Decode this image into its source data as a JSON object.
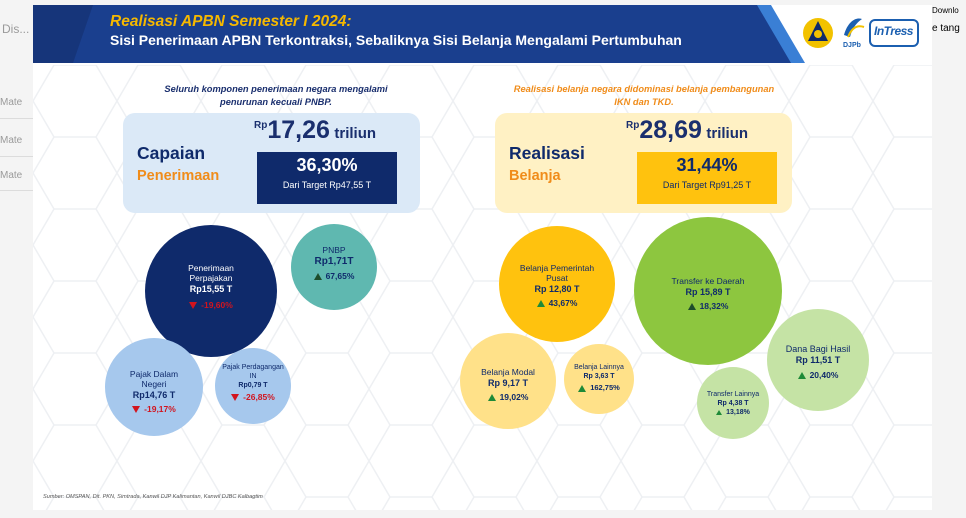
{
  "background_app": {
    "top_left_text": "Dis...",
    "rows": [
      "Mate",
      "Mate",
      "Mate"
    ],
    "right_top_text": "Downlo",
    "right_bottom_text": "e tang"
  },
  "header": {
    "title": "Realisasi APBN Semester I 2024:",
    "subtitle": "Sisi Penerimaan APBN Terkontraksi, Sebaliknya Sisi Belanja Mengalami Pertumbuhan",
    "logos": {
      "djpb_text": "DJPb",
      "intress_text": "InTress"
    }
  },
  "left": {
    "note": "Seluruh komponen penerimaan negara mengalami penurunan kecuali PNBP.",
    "card_label_1": "Capaian",
    "card_label_2": "Penerimaan",
    "amount_rp": "Rp",
    "amount_value": "17,26",
    "amount_unit": "triliun",
    "percent": "36,30%",
    "target": "Dari Target Rp47,55 T",
    "bubbles": [
      {
        "name": "Penerimaan Perpajakan",
        "value": "Rp15,55 T",
        "change": "-19,60%",
        "direction": "down"
      },
      {
        "name": "PNBP",
        "value": "Rp1,71T",
        "change": "67,65%",
        "direction": "up"
      },
      {
        "name": "Pajak Dalam Negeri",
        "value": "Rp14,76 T",
        "change": "-19,17%",
        "direction": "down"
      },
      {
        "name": "Pajak Perdagangan IN",
        "value": "Rp0,79 T",
        "change": "-26,85%",
        "direction": "down"
      }
    ]
  },
  "right": {
    "note": "Realisasi belanja negara didominasi belanja pembangunan IKN dan TKD.",
    "card_label_1": "Realisasi",
    "card_label_2": "Belanja",
    "amount_rp": "Rp",
    "amount_value": "28,69",
    "amount_unit": "triliun",
    "percent": "31,44%",
    "target": "Dari Target Rp91,25 T",
    "bubbles": [
      {
        "name": "Belanja Pemerintah Pusat",
        "value": "Rp 12,80 T",
        "change": "43,67%",
        "direction": "up"
      },
      {
        "name": "Transfer ke Daerah",
        "value": "Rp 15,89 T",
        "change": "18,32%",
        "direction": "up"
      },
      {
        "name": "Belanja Modal",
        "value": "Rp 9,17 T",
        "change": "19,02%",
        "direction": "up"
      },
      {
        "name": "Belanja Lainnya",
        "value": "Rp 3,63 T",
        "change": "162,75%",
        "direction": "up"
      },
      {
        "name": "Dana Bagi Hasil",
        "value": "Rp 11,51 T",
        "change": "20,40%",
        "direction": "up"
      },
      {
        "name": "Transfer Lainnya",
        "value": "Rp 4,38 T",
        "change": "13,18%",
        "direction": "up"
      }
    ]
  },
  "source": "Sumber: OMSPAN, Dit. PKN, Simtrada, Kanwil DJP Kalimantan, Kanwil DJBC Kalbagtim",
  "colors": {
    "navy": "#0f2a6b",
    "orange": "#f08c1a",
    "yellow": "#ffc20e",
    "light_blue": "#dbe9f7",
    "light_yellow": "#fff1c4"
  }
}
